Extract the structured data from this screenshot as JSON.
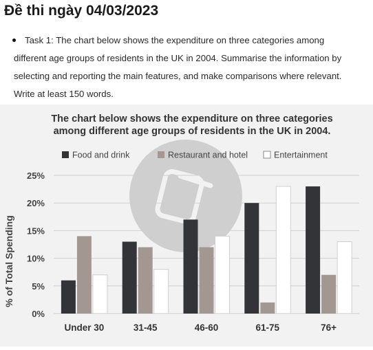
{
  "page": {
    "title": "Đề thi ngày 04/03/2023",
    "task_text": "Task 1: The chart below shows the expenditure on three categories among different age groups of residents in the UK in 2004. Summarise the information by selecting and reporting the main features, and make comparisons where relevant. Write at least 150 words."
  },
  "colors": {
    "food": "#333438",
    "restaurant": "#a39891",
    "entertainment": "#ffffff",
    "grid": "#cfcfcf",
    "background": "#f2f2f2"
  },
  "chart_data": {
    "type": "bar",
    "title_line1": "The chart below shows the expenditure on three categories",
    "title_line2": "among different age groups of residents in the UK in 2004.",
    "xlabel": "",
    "ylabel": "% of Total Spending",
    "ylim": [
      0,
      25
    ],
    "yticks": [
      0,
      5,
      10,
      15,
      20,
      25
    ],
    "ytick_labels": [
      "0%",
      "5%",
      "10%",
      "15%",
      "20%",
      "25%"
    ],
    "categories": [
      "Under 30",
      "31-45",
      "46-60",
      "61-75",
      "76+"
    ],
    "series": [
      {
        "name": "Food and drink",
        "color": "#333438",
        "values": [
          6,
          13,
          17,
          20,
          23
        ]
      },
      {
        "name": "Restaurant and hotel",
        "color": "#a39891",
        "values": [
          14,
          12,
          12,
          2,
          7
        ]
      },
      {
        "name": "Entertainment",
        "color": "#ffffff",
        "values": [
          7,
          8,
          14,
          23,
          13
        ]
      }
    ],
    "legend_position": "top",
    "grid": true
  }
}
